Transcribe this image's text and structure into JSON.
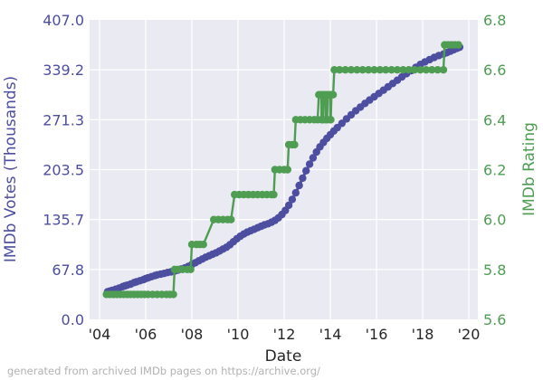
{
  "figure": {
    "left_axis_title": "IMDb Votes (Thousands)",
    "right_axis_title": "IMDb Rating",
    "x_axis_title": "Date",
    "footer_note": "generated from archived IMDb pages on https://archive.org/"
  },
  "colors": {
    "votes_series": "#4d4ea0",
    "rating_series": "#4e9d52",
    "plot_background": "#eaeaf2",
    "gridline": "#ffffff",
    "x_tick_text": "#262626",
    "footer_text": "#b2b2b2"
  },
  "chart_data": {
    "type": "line",
    "title": "",
    "xlabel": "Date",
    "grid": true,
    "legend": false,
    "x_axis": {
      "tick_labels": [
        "'04",
        "'06",
        "'08",
        "'10",
        "'12",
        "'14",
        "'16",
        "'18",
        "'20"
      ],
      "tick_values": [
        2004,
        2006,
        2008,
        2010,
        2012,
        2014,
        2016,
        2018,
        2020
      ],
      "range": [
        2003.57,
        2020.39
      ]
    },
    "left_axis": {
      "label": "IMDb Votes (Thousands)",
      "tick_labels": [
        "0.0",
        "67.8",
        "135.7",
        "203.5",
        "271.3",
        "339.2",
        "407.0"
      ],
      "tick_values": [
        0,
        67.8,
        135.7,
        203.5,
        271.3,
        339.2,
        407.0
      ],
      "range": [
        0,
        407
      ]
    },
    "right_axis": {
      "label": "IMDb Rating",
      "tick_labels": [
        "5.6",
        "5.8",
        "6.0",
        "6.2",
        "6.4",
        "6.6",
        "6.8"
      ],
      "tick_values": [
        5.6,
        5.8,
        6.0,
        6.2,
        6.4,
        6.6,
        6.8
      ],
      "range": [
        5.6,
        6.8
      ]
    },
    "series": [
      {
        "name": "IMDb Votes (Thousands)",
        "axis": "left",
        "color": "#4d4ea0",
        "marker_radius": 4.2,
        "line_width": 3,
        "points": [
          [
            2004.35,
            37.5
          ],
          [
            2004.45,
            38.5
          ],
          [
            2004.55,
            39.5
          ],
          [
            2004.7,
            41
          ],
          [
            2004.85,
            42.5
          ],
          [
            2005.0,
            44.5
          ],
          [
            2005.1,
            45.5
          ],
          [
            2005.2,
            46.5
          ],
          [
            2005.35,
            48
          ],
          [
            2005.5,
            50
          ],
          [
            2005.6,
            51
          ],
          [
            2005.75,
            52.5
          ],
          [
            2005.9,
            54
          ],
          [
            2006.0,
            55.5
          ],
          [
            2006.1,
            56.5
          ],
          [
            2006.25,
            58
          ],
          [
            2006.4,
            59.5
          ],
          [
            2006.5,
            60.5
          ],
          [
            2006.65,
            61.5
          ],
          [
            2006.8,
            62.5
          ],
          [
            2006.95,
            63.7
          ],
          [
            2007.1,
            64.5
          ],
          [
            2007.25,
            65.5
          ],
          [
            2007.4,
            67
          ],
          [
            2007.55,
            68.5
          ],
          [
            2007.7,
            70
          ],
          [
            2007.85,
            72
          ],
          [
            2008.0,
            74.5
          ],
          [
            2008.15,
            77
          ],
          [
            2008.3,
            79.5
          ],
          [
            2008.45,
            82
          ],
          [
            2008.6,
            84.5
          ],
          [
            2008.75,
            86.5
          ],
          [
            2008.9,
            88.5
          ],
          [
            2009.05,
            90.5
          ],
          [
            2009.2,
            93
          ],
          [
            2009.35,
            95.5
          ],
          [
            2009.5,
            98
          ],
          [
            2009.65,
            101.5
          ],
          [
            2009.8,
            105.5
          ],
          [
            2009.95,
            109.5
          ],
          [
            2010.1,
            113
          ],
          [
            2010.25,
            116
          ],
          [
            2010.4,
            118.5
          ],
          [
            2010.55,
            120.5
          ],
          [
            2010.7,
            122.5
          ],
          [
            2010.85,
            124.5
          ],
          [
            2011.0,
            126.5
          ],
          [
            2011.15,
            128.5
          ],
          [
            2011.3,
            130
          ],
          [
            2011.45,
            132
          ],
          [
            2011.6,
            134.5
          ],
          [
            2011.75,
            138
          ],
          [
            2011.9,
            142.5
          ],
          [
            2012.05,
            148
          ],
          [
            2012.2,
            155
          ],
          [
            2012.35,
            163
          ],
          [
            2012.5,
            172
          ],
          [
            2012.65,
            182
          ],
          [
            2012.8,
            192
          ],
          [
            2012.95,
            202
          ],
          [
            2013.1,
            211
          ],
          [
            2013.25,
            219.5
          ],
          [
            2013.4,
            227.5
          ],
          [
            2013.55,
            234.5
          ],
          [
            2013.7,
            240.5
          ],
          [
            2013.85,
            246
          ],
          [
            2014.0,
            251
          ],
          [
            2014.15,
            256
          ],
          [
            2014.3,
            260.5
          ],
          [
            2014.5,
            266.5
          ],
          [
            2014.7,
            272.5
          ],
          [
            2014.9,
            278
          ],
          [
            2015.1,
            283.5
          ],
          [
            2015.3,
            288.5
          ],
          [
            2015.5,
            293.5
          ],
          [
            2015.7,
            298
          ],
          [
            2015.9,
            302.5
          ],
          [
            2016.1,
            307
          ],
          [
            2016.3,
            311.5
          ],
          [
            2016.5,
            316
          ],
          [
            2016.7,
            320.5
          ],
          [
            2016.9,
            325
          ],
          [
            2017.1,
            329.5
          ],
          [
            2017.3,
            334
          ],
          [
            2017.5,
            338
          ],
          [
            2017.7,
            342.5
          ],
          [
            2017.9,
            346.5
          ],
          [
            2018.1,
            350
          ],
          [
            2018.3,
            353
          ],
          [
            2018.5,
            356
          ],
          [
            2018.7,
            358.5
          ],
          [
            2018.9,
            360.5
          ],
          [
            2019.05,
            362.5
          ],
          [
            2019.2,
            364.5
          ],
          [
            2019.35,
            366.5
          ],
          [
            2019.5,
            368.5
          ],
          [
            2019.6,
            370
          ]
        ]
      },
      {
        "name": "IMDb Rating",
        "axis": "right",
        "color": "#4e9d52",
        "marker_radius": 4.2,
        "line_width": 2.4,
        "points": [
          [
            2004.3,
            5.7
          ],
          [
            2004.45,
            5.7
          ],
          [
            2004.6,
            5.7
          ],
          [
            2004.75,
            5.7
          ],
          [
            2004.9,
            5.7
          ],
          [
            2005.05,
            5.7
          ],
          [
            2005.2,
            5.7
          ],
          [
            2005.35,
            5.7
          ],
          [
            2005.5,
            5.7
          ],
          [
            2005.65,
            5.7
          ],
          [
            2005.8,
            5.7
          ],
          [
            2005.95,
            5.7
          ],
          [
            2006.1,
            5.7
          ],
          [
            2006.3,
            5.7
          ],
          [
            2006.5,
            5.7
          ],
          [
            2006.7,
            5.7
          ],
          [
            2006.9,
            5.7
          ],
          [
            2007.05,
            5.7
          ],
          [
            2007.2,
            5.7
          ],
          [
            2007.25,
            5.8
          ],
          [
            2007.4,
            5.8
          ],
          [
            2007.6,
            5.8
          ],
          [
            2007.8,
            5.8
          ],
          [
            2007.95,
            5.8
          ],
          [
            2008.0,
            5.9
          ],
          [
            2008.2,
            5.9
          ],
          [
            2008.35,
            5.9
          ],
          [
            2008.5,
            5.9
          ],
          [
            2008.95,
            6.0
          ],
          [
            2009.15,
            6.0
          ],
          [
            2009.35,
            6.0
          ],
          [
            2009.55,
            6.0
          ],
          [
            2009.7,
            6.0
          ],
          [
            2009.85,
            6.1
          ],
          [
            2010.05,
            6.1
          ],
          [
            2010.25,
            6.1
          ],
          [
            2010.45,
            6.1
          ],
          [
            2010.65,
            6.1
          ],
          [
            2010.85,
            6.1
          ],
          [
            2011.05,
            6.1
          ],
          [
            2011.25,
            6.1
          ],
          [
            2011.45,
            6.1
          ],
          [
            2011.55,
            6.1
          ],
          [
            2011.6,
            6.2
          ],
          [
            2011.8,
            6.2
          ],
          [
            2012.0,
            6.2
          ],
          [
            2012.15,
            6.2
          ],
          [
            2012.2,
            6.3
          ],
          [
            2012.35,
            6.3
          ],
          [
            2012.45,
            6.3
          ],
          [
            2012.5,
            6.4
          ],
          [
            2012.7,
            6.4
          ],
          [
            2012.9,
            6.4
          ],
          [
            2013.1,
            6.4
          ],
          [
            2013.3,
            6.4
          ],
          [
            2013.45,
            6.4
          ],
          [
            2013.5,
            6.5
          ],
          [
            2013.6,
            6.5
          ],
          [
            2013.62,
            6.4
          ],
          [
            2013.68,
            6.4
          ],
          [
            2013.7,
            6.5
          ],
          [
            2013.78,
            6.5
          ],
          [
            2013.8,
            6.4
          ],
          [
            2013.86,
            6.4
          ],
          [
            2013.88,
            6.5
          ],
          [
            2013.98,
            6.5
          ],
          [
            2014.0,
            6.4
          ],
          [
            2014.02,
            6.4
          ],
          [
            2014.05,
            6.5
          ],
          [
            2014.12,
            6.5
          ],
          [
            2014.17,
            6.6
          ],
          [
            2014.4,
            6.6
          ],
          [
            2014.65,
            6.6
          ],
          [
            2014.9,
            6.6
          ],
          [
            2015.15,
            6.6
          ],
          [
            2015.4,
            6.6
          ],
          [
            2015.65,
            6.6
          ],
          [
            2015.9,
            6.6
          ],
          [
            2016.15,
            6.6
          ],
          [
            2016.4,
            6.6
          ],
          [
            2016.65,
            6.6
          ],
          [
            2016.9,
            6.6
          ],
          [
            2017.15,
            6.6
          ],
          [
            2017.4,
            6.6
          ],
          [
            2017.65,
            6.6
          ],
          [
            2017.9,
            6.6
          ],
          [
            2018.15,
            6.6
          ],
          [
            2018.4,
            6.6
          ],
          [
            2018.65,
            6.6
          ],
          [
            2018.9,
            6.6
          ],
          [
            2018.95,
            6.7
          ],
          [
            2019.1,
            6.7
          ],
          [
            2019.25,
            6.7
          ],
          [
            2019.4,
            6.7
          ],
          [
            2019.55,
            6.7
          ]
        ]
      }
    ]
  }
}
